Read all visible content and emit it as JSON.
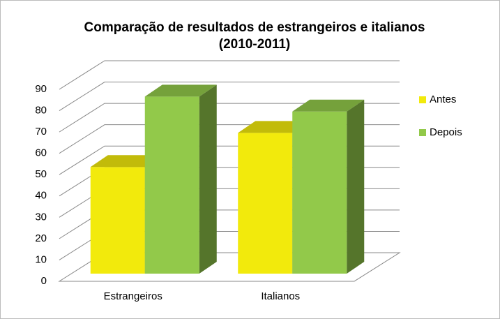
{
  "chart_data": {
    "type": "bar3d",
    "title": [
      "Comparação  de resultados de estrangeiros e italianos",
      "(2010-2011)"
    ],
    "categories": [
      "Estrangeiros",
      "Italianos"
    ],
    "series": [
      {
        "name": "Antes",
        "color": "#f2ea0c",
        "values": [
          50,
          66
        ]
      },
      {
        "name": "Depois",
        "color": "#92c94a",
        "values": [
          83,
          76
        ]
      }
    ],
    "ylim": [
      0,
      90
    ],
    "yticks": [
      0,
      10,
      20,
      30,
      40,
      50,
      60,
      70,
      80,
      90
    ],
    "grid": true,
    "legend": "right"
  }
}
